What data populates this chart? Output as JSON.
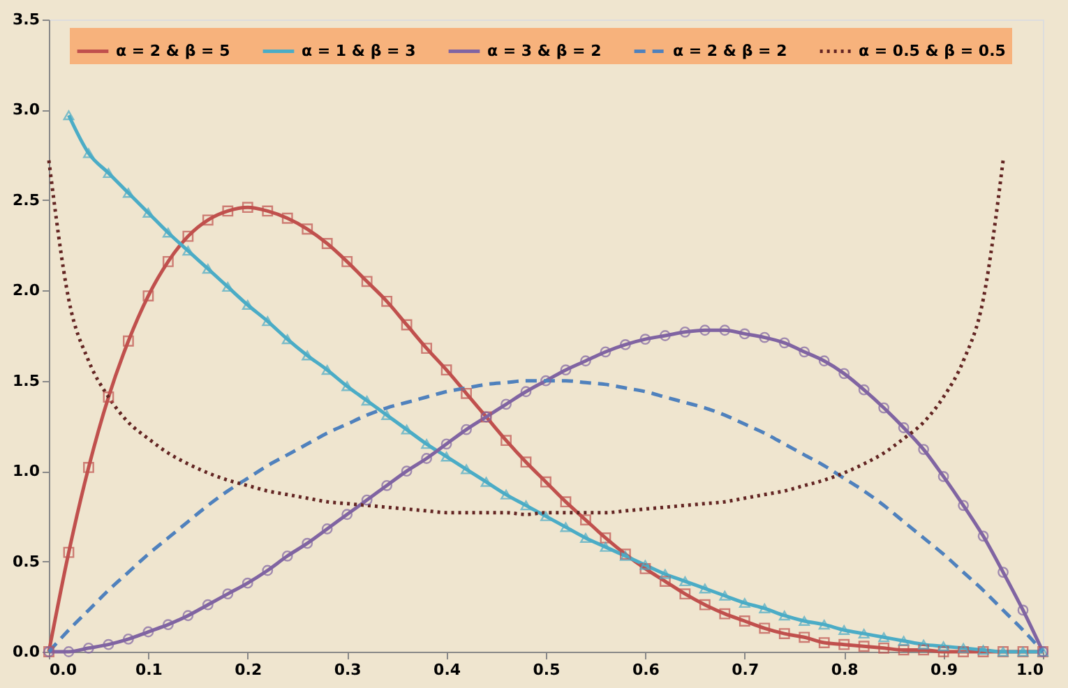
{
  "chart_data": {
    "type": "line",
    "x": [
      0,
      0.02,
      0.04,
      0.06,
      0.08,
      0.1,
      0.12,
      0.14,
      0.16,
      0.18,
      0.2,
      0.22,
      0.24,
      0.26,
      0.28,
      0.3,
      0.32,
      0.34,
      0.36,
      0.38,
      0.4,
      0.42,
      0.44,
      0.46,
      0.48,
      0.5,
      0.52,
      0.54,
      0.56,
      0.58,
      0.6,
      0.62,
      0.64,
      0.66,
      0.68,
      0.7,
      0.72,
      0.74,
      0.76,
      0.78,
      0.8,
      0.82,
      0.84,
      0.86,
      0.88,
      0.9,
      0.92,
      0.94,
      0.96,
      0.98,
      1.0
    ],
    "series": [
      {
        "name": "α = 2 & β = 5",
        "color": "#c0504d",
        "marker": "square",
        "line_style": "solid",
        "values": [
          0,
          0.55,
          1.02,
          1.41,
          1.72,
          1.97,
          2.16,
          2.3,
          2.39,
          2.44,
          2.46,
          2.44,
          2.4,
          2.34,
          2.26,
          2.16,
          2.05,
          1.94,
          1.81,
          1.68,
          1.56,
          1.43,
          1.3,
          1.17,
          1.05,
          0.94,
          0.83,
          0.73,
          0.63,
          0.54,
          0.46,
          0.39,
          0.32,
          0.26,
          0.21,
          0.17,
          0.13,
          0.1,
          0.08,
          0.05,
          0.04,
          0.03,
          0.02,
          0.01,
          0.01,
          0,
          0,
          0,
          0,
          0,
          0
        ]
      },
      {
        "name": "α = 1 & β = 3",
        "color": "#4bacc6",
        "marker": "triangle",
        "line_style": "solid",
        "x": [
          0.02,
          0.04,
          0.06,
          0.08,
          0.1,
          0.12,
          0.14,
          0.16,
          0.18,
          0.2,
          0.22,
          0.24,
          0.26,
          0.28,
          0.3,
          0.32,
          0.34,
          0.36,
          0.38,
          0.4,
          0.42,
          0.44,
          0.46,
          0.48,
          0.5,
          0.52,
          0.54,
          0.56,
          0.58,
          0.6,
          0.62,
          0.64,
          0.66,
          0.68,
          0.7,
          0.72,
          0.74,
          0.76,
          0.78,
          0.8,
          0.82,
          0.84,
          0.86,
          0.88,
          0.9,
          0.92,
          0.94,
          0.96,
          0.98,
          1.0
        ],
        "values": [
          2.97,
          2.76,
          2.65,
          2.54,
          2.43,
          2.32,
          2.22,
          2.12,
          2.02,
          1.92,
          1.83,
          1.73,
          1.64,
          1.56,
          1.47,
          1.39,
          1.31,
          1.23,
          1.15,
          1.08,
          1.01,
          0.94,
          0.87,
          0.81,
          0.75,
          0.69,
          0.63,
          0.58,
          0.53,
          0.48,
          0.43,
          0.39,
          0.35,
          0.31,
          0.27,
          0.24,
          0.2,
          0.17,
          0.15,
          0.12,
          0.1,
          0.08,
          0.06,
          0.04,
          0.03,
          0.02,
          0.01,
          0,
          0,
          0
        ]
      },
      {
        "name": "α = 3 & β = 2",
        "color": "#8064a2",
        "marker": "circle",
        "line_style": "solid",
        "values": [
          0,
          0,
          0.02,
          0.04,
          0.07,
          0.11,
          0.15,
          0.2,
          0.26,
          0.32,
          0.38,
          0.45,
          0.53,
          0.6,
          0.68,
          0.76,
          0.84,
          0.92,
          1.0,
          1.07,
          1.15,
          1.23,
          1.3,
          1.37,
          1.44,
          1.5,
          1.56,
          1.61,
          1.66,
          1.7,
          1.73,
          1.75,
          1.77,
          1.78,
          1.78,
          1.76,
          1.74,
          1.71,
          1.66,
          1.61,
          1.54,
          1.45,
          1.35,
          1.24,
          1.12,
          0.97,
          0.81,
          0.64,
          0.44,
          0.23,
          0
        ]
      },
      {
        "name": "α = 2 & β = 2",
        "color": "#4f81bd",
        "marker": "none",
        "line_style": "dashed",
        "values": [
          0,
          0.12,
          0.23,
          0.34,
          0.44,
          0.54,
          0.63,
          0.72,
          0.81,
          0.89,
          0.96,
          1.03,
          1.09,
          1.15,
          1.21,
          1.26,
          1.31,
          1.35,
          1.38,
          1.41,
          1.44,
          1.46,
          1.48,
          1.49,
          1.5,
          1.5,
          1.5,
          1.49,
          1.48,
          1.46,
          1.44,
          1.41,
          1.38,
          1.35,
          1.31,
          1.26,
          1.21,
          1.15,
          1.09,
          1.03,
          0.96,
          0.89,
          0.81,
          0.72,
          0.63,
          0.54,
          0.44,
          0.34,
          0.23,
          0.12,
          0
        ]
      },
      {
        "name": "α = 0.5 & β = 0.5",
        "color": "#632523",
        "marker": "none",
        "line_style": "dotted",
        "x": [
          0,
          0.02,
          0.04,
          0.06,
          0.08,
          0.1,
          0.12,
          0.14,
          0.16,
          0.18,
          0.2,
          0.22,
          0.24,
          0.26,
          0.28,
          0.3,
          0.32,
          0.34,
          0.36,
          0.38,
          0.4,
          0.42,
          0.44,
          0.46,
          0.48,
          0.5,
          0.52,
          0.54,
          0.56,
          0.58,
          0.6,
          0.62,
          0.64,
          0.66,
          0.68,
          0.7,
          0.72,
          0.74,
          0.76,
          0.78,
          0.8,
          0.82,
          0.84,
          0.86,
          0.88,
          0.9,
          0.92,
          0.94,
          0.96
        ],
        "values": [
          2.72,
          1.95,
          1.61,
          1.41,
          1.27,
          1.18,
          1.1,
          1.04,
          0.99,
          0.95,
          0.92,
          0.89,
          0.87,
          0.85,
          0.83,
          0.82,
          0.81,
          0.8,
          0.79,
          0.78,
          0.77,
          0.77,
          0.77,
          0.77,
          0.76,
          0.77,
          0.77,
          0.77,
          0.77,
          0.78,
          0.79,
          0.8,
          0.81,
          0.82,
          0.83,
          0.85,
          0.87,
          0.89,
          0.92,
          0.95,
          0.99,
          1.04,
          1.1,
          1.18,
          1.27,
          1.41,
          1.61,
          1.95,
          2.72
        ]
      }
    ],
    "xlim": [
      0,
      1
    ],
    "xticks": [
      {
        "value": 0,
        "label": "0.0"
      },
      0.1,
      0.2,
      0.3,
      0.4,
      0.5,
      0.6,
      0.7,
      0.8,
      0.9,
      {
        "value": 1,
        "label": "1.0"
      }
    ],
    "ylim": [
      0,
      3.5
    ],
    "yticks": [
      {
        "value": 0,
        "label": "0.0"
      },
      0.5,
      {
        "value": 1,
        "label": "1.0"
      },
      1.5,
      {
        "value": 2,
        "label": "2.0"
      },
      2.5,
      {
        "value": 3,
        "label": "3.0"
      },
      3.5
    ],
    "grid": false,
    "legend": "top"
  }
}
